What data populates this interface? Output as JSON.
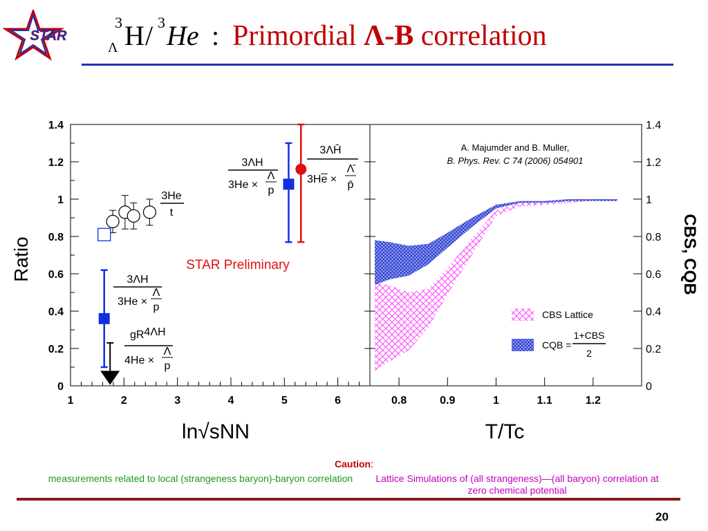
{
  "page": {
    "logo_text": "STAR",
    "title": {
      "nucleus1": {
        "mass": "3",
        "sub": "Λ",
        "symbol": "H"
      },
      "slash": "/",
      "nucleus2": {
        "mass": "3",
        "symbol": "He"
      },
      "colon": ":",
      "text_prefix": "Primordial ",
      "text_bold": "Λ-B",
      "text_suffix": " correlation"
    },
    "page_number": "20",
    "caution_label": "Caution",
    "caution_colon": ":",
    "caution_left": "measurements related to local (strangeness baryon)-baryon correlation",
    "caution_right": "Lattice Simulations of (all strangeness)—(all baryon) correlation at zero chemical potential",
    "colors": {
      "title_red": "#c00000",
      "rule_blue": "#1f2fb5",
      "rule_bottom": "#8b1a1a",
      "caution_green": "#1a9a1a",
      "caution_magenta": "#c000c0"
    }
  },
  "chart_data": [
    {
      "type": "scatter",
      "xlabel": "ln√sNN",
      "ylabel": "Ratio",
      "xlim": [
        1,
        6.6
      ],
      "ylim": [
        0,
        1.4
      ],
      "xticks": [
        "1",
        "2",
        "3",
        "4",
        "5",
        "6"
      ],
      "yticks": [
        "0",
        "0.2",
        "0.4",
        "0.6",
        "0.8",
        "1",
        "1.2",
        "1.4"
      ],
      "annotation": "STAR Preliminary",
      "series": [
        {
          "name": "3He/t",
          "marker": "open-circle",
          "color": "#000000",
          "points": [
            {
              "x": 1.79,
              "y": 0.88,
              "err": 0.06
            },
            {
              "x": 2.02,
              "y": 0.93,
              "err": 0.09
            },
            {
              "x": 2.18,
              "y": 0.91,
              "err": 0.07
            },
            {
              "x": 2.48,
              "y": 0.93,
              "err": 0.07
            }
          ]
        },
        {
          "name": "3He/t open square",
          "marker": "open-square",
          "color": "#1030e0",
          "points": [
            {
              "x": 1.63,
              "y": 0.81
            }
          ]
        },
        {
          "name": "3ΛH/(3He×Λ/p) low energy",
          "marker": "filled-square",
          "color": "#1030e0",
          "points": [
            {
              "x": 1.63,
              "y": 0.36,
              "err_low": 0.26,
              "err_high": 0.26
            }
          ]
        },
        {
          "name": "gR 4ΛH/(4He×Λ/p)",
          "marker": "upper-limit-arrow",
          "color": "#000000",
          "points": [
            {
              "x": 1.74,
              "y": 0.23
            }
          ]
        },
        {
          "name": "3ΛH/(3He×Λ/p) RHIC",
          "marker": "filled-square",
          "color": "#1030e0",
          "points": [
            {
              "x": 5.08,
              "y": 1.08,
              "err_low": 0.31,
              "err_high": 0.22
            }
          ]
        },
        {
          "name": "anti-3ΛH/(anti-3He×anti-Λ/anti-p)",
          "marker": "filled-circle",
          "color": "#e01010",
          "points": [
            {
              "x": 5.31,
              "y": 1.16,
              "err_low": 0.39,
              "err_high": 0.24
            }
          ]
        }
      ],
      "labels": {
        "he_t": {
          "num": "3He",
          "den": "t"
        },
        "hyp_low": {
          "num": "3ΛH",
          "den_a": "3He ×",
          "den_frac_num": "Λ",
          "den_frac_den": "p"
        },
        "h4": {
          "pre": "gR",
          "num": "4ΛH",
          "den_a": "4He ×",
          "den_frac_num": "Λ",
          "den_frac_den": "p"
        },
        "hyp_rhic": {
          "num": "3ΛH",
          "den_a": "3He ×",
          "den_frac_num": "Λ",
          "den_frac_den": "p"
        },
        "anti_hyp": {
          "num": "3ΛH̄",
          "den_a": "3He̅ ×",
          "den_frac_num": "Λ̄",
          "den_frac_den": "p̄"
        }
      }
    },
    {
      "type": "area",
      "xlabel": "T/Tc",
      "ylabel": "CBS, CQB",
      "xlim": [
        0.74,
        1.3
      ],
      "ylim": [
        0,
        1.4
      ],
      "xticks": [
        "0.8",
        "0.9",
        "1",
        "1.1",
        "1.2"
      ],
      "yticks": [
        "0",
        "0.2",
        "0.4",
        "0.6",
        "0.8",
        "1",
        "1.2",
        "1.4"
      ],
      "reference_line1": "A.  Majumder and B. Muller,",
      "reference_line2": "B.  Phys. Rev. C 74 (2006) 054901",
      "series": [
        {
          "name": "CBS Lattice",
          "color": "#ff44ff",
          "style": "crosshatch",
          "band": {
            "x": [
              0.75,
              0.78,
              0.82,
              0.86,
              0.9,
              0.95,
              1.0,
              1.05,
              1.1,
              1.15,
              1.2,
              1.25
            ],
            "low": [
              0.08,
              0.13,
              0.19,
              0.31,
              0.49,
              0.7,
              0.91,
              0.96,
              0.97,
              0.98,
              0.99,
              0.99
            ],
            "high": [
              0.55,
              0.54,
              0.5,
              0.52,
              0.63,
              0.79,
              0.94,
              0.98,
              0.98,
              0.99,
              0.99,
              1.0
            ]
          }
        },
        {
          "name": "CQB = (1+CBS)/2",
          "color": "#3344dd",
          "style": "dense-crosshatch",
          "band": {
            "x": [
              0.75,
              0.78,
              0.82,
              0.86,
              0.9,
              0.95,
              1.0,
              1.05,
              1.1,
              1.15,
              1.2,
              1.25
            ],
            "low": [
              0.54,
              0.57,
              0.59,
              0.65,
              0.74,
              0.85,
              0.95,
              0.98,
              0.98,
              0.99,
              0.99,
              0.99
            ],
            "high": [
              0.78,
              0.77,
              0.75,
              0.76,
              0.82,
              0.9,
              0.97,
              0.99,
              0.99,
              1.0,
              1.0,
              1.0
            ]
          }
        }
      ],
      "legend": {
        "cbs_label": "CBS Lattice",
        "cqb_label": "CQB =",
        "cqb_num": "1+CBS",
        "cqb_den": "2"
      }
    }
  ]
}
